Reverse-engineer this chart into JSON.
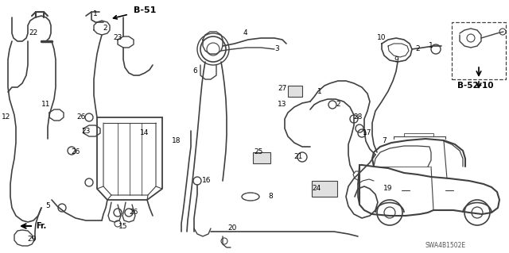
{
  "bg_color": "#ffffff",
  "line_color": "#404040",
  "text_color": "#000000",
  "bold_labels": [
    "B-51",
    "B-52-10"
  ],
  "code": "SWA4B1502E",
  "figsize": [
    6.4,
    3.19
  ],
  "dpi": 100
}
